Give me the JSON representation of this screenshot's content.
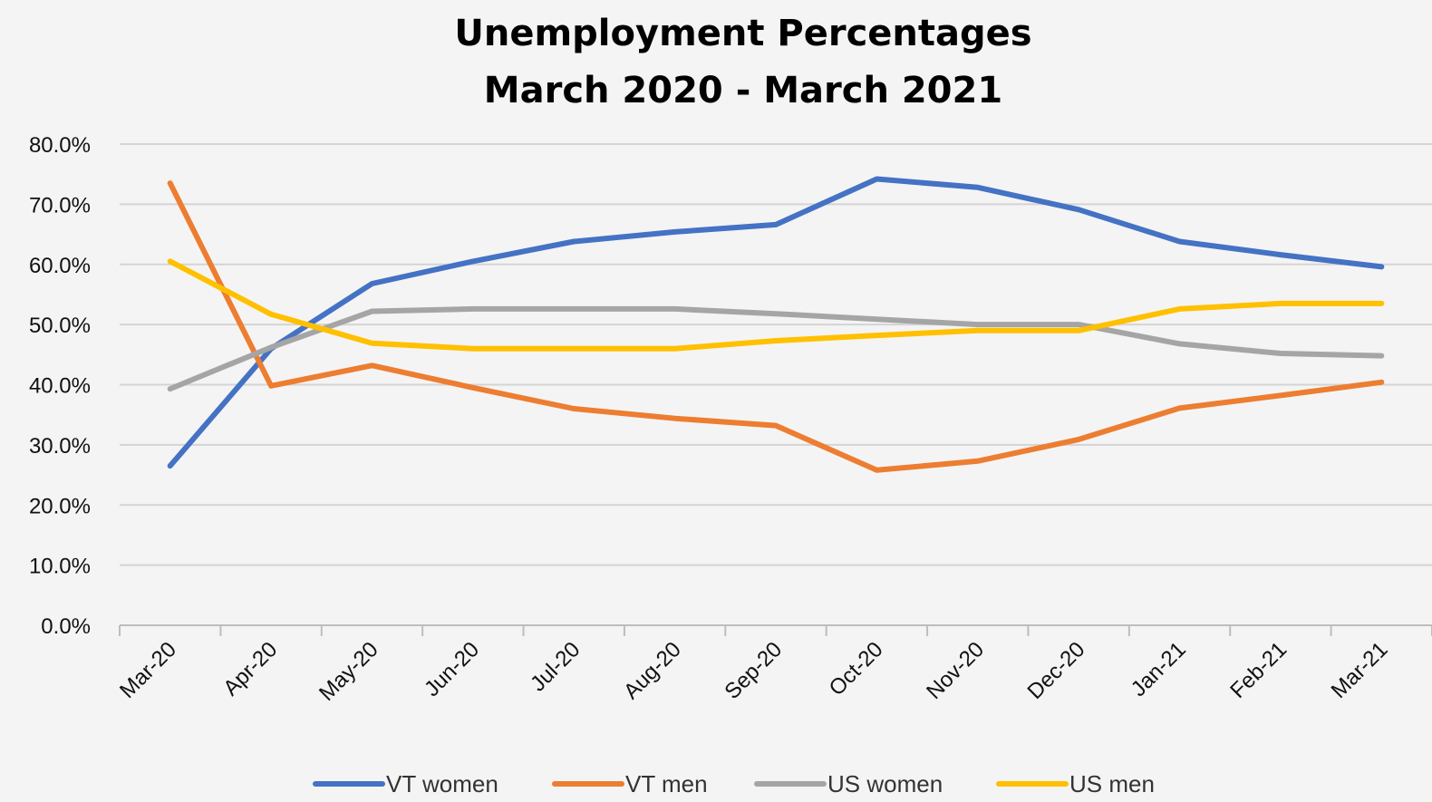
{
  "chart_data": {
    "type": "line",
    "title_lines": [
      "Unemployment Percentages",
      "March 2020 - March 2021"
    ],
    "categories": [
      "Mar-20",
      "Apr-20",
      "May-20",
      "Jun-20",
      "Jul-20",
      "Aug-20",
      "Sep-20",
      "Oct-20",
      "Nov-20",
      "Dec-20",
      "Jan-21",
      "Feb-21",
      "Mar-21"
    ],
    "y_ticks": [
      "0.0%",
      "10.0%",
      "20.0%",
      "30.0%",
      "40.0%",
      "50.0%",
      "60.0%",
      "70.0%",
      "80.0%"
    ],
    "ylim": [
      0,
      80
    ],
    "grid": true,
    "legend_position": "bottom",
    "series": [
      {
        "name": "VT women",
        "color": "#4472C4",
        "values": [
          26.5,
          46.0,
          56.8,
          60.5,
          63.8,
          65.4,
          66.6,
          74.2,
          72.8,
          69.1,
          63.8,
          61.6,
          59.6
        ]
      },
      {
        "name": "VT men",
        "color": "#ED7D31",
        "values": [
          73.5,
          39.8,
          43.2,
          39.5,
          36.0,
          34.4,
          33.2,
          25.8,
          27.3,
          30.9,
          36.1,
          38.2,
          40.4
        ]
      },
      {
        "name": "US women",
        "color": "#A5A5A5",
        "values": [
          39.3,
          46.2,
          52.2,
          52.6,
          52.6,
          52.6,
          51.8,
          50.9,
          50.0,
          50.0,
          46.8,
          45.2,
          44.8
        ]
      },
      {
        "name": "US men",
        "color": "#FFC000",
        "values": [
          60.5,
          51.7,
          46.9,
          46.0,
          46.0,
          46.0,
          47.3,
          48.2,
          49.0,
          49.0,
          52.6,
          53.5,
          53.5
        ]
      }
    ]
  }
}
